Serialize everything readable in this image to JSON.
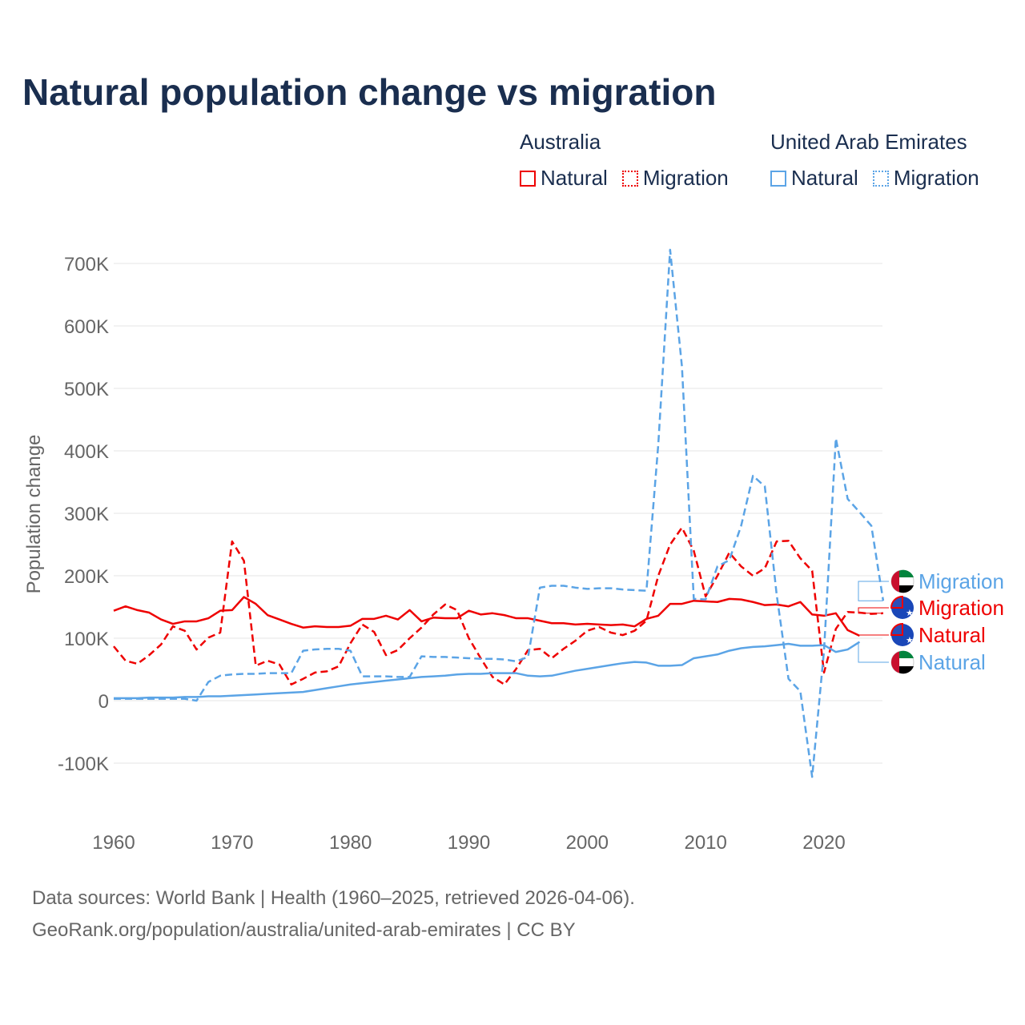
{
  "chart_data": {
    "type": "line",
    "title": "Natural population change vs migration",
    "xlabel": "",
    "ylabel": "Population change",
    "xlim": [
      1960,
      2025
    ],
    "ylim": [
      -150000,
      730000
    ],
    "x_ticks": [
      1960,
      1970,
      1980,
      1990,
      2000,
      2010,
      2020
    ],
    "x_tick_labels": [
      "1960",
      "1970",
      "1980",
      "1990",
      "2000",
      "2010",
      "2020"
    ],
    "y_ticks": [
      -100000,
      0,
      100000,
      200000,
      300000,
      400000,
      500000,
      600000,
      700000
    ],
    "y_tick_labels": [
      "-100K",
      "0",
      "100K",
      "200K",
      "300K",
      "400K",
      "500K",
      "600K",
      "700K"
    ],
    "grid": true,
    "legend": {
      "placement": "top-right",
      "groups": [
        {
          "name": "Australia",
          "items": [
            "Natural",
            "Migration"
          ]
        },
        {
          "name": "United Arab Emirates",
          "items": [
            "Natural",
            "Migration"
          ]
        }
      ]
    },
    "series": [
      {
        "name": "Australia Natural",
        "country": "Australia",
        "kind": "Natural",
        "color": "#ee0000",
        "dash": false,
        "end_label": "Natural",
        "x_start": 1960,
        "values": [
          144,
          151,
          145,
          141,
          130,
          123,
          127,
          127,
          132,
          144,
          145,
          166,
          155,
          137,
          130,
          123,
          117,
          119,
          118,
          118,
          120,
          131,
          131,
          136,
          130,
          145,
          127,
          133,
          132,
          132,
          144,
          138,
          140,
          137,
          132,
          132,
          128,
          124,
          124,
          122,
          123,
          122,
          121,
          122,
          119,
          131,
          136,
          155,
          155,
          160,
          159,
          158,
          163,
          162,
          158,
          153,
          154,
          151,
          158,
          138,
          136,
          140,
          113,
          104
        ]
      },
      {
        "name": "Australia Migration",
        "country": "Australia",
        "kind": "Migration",
        "color": "#ee0000",
        "dash": true,
        "end_label": "Migration",
        "x_start": 1960,
        "values": [
          87,
          64,
          59,
          73,
          90,
          119,
          112,
          82,
          101,
          109,
          255,
          224,
          56,
          64,
          58,
          26,
          35,
          45,
          47,
          55,
          92,
          122,
          110,
          73,
          81,
          100,
          117,
          138,
          154,
          145,
          100,
          68,
          38,
          26,
          51,
          81,
          83,
          68,
          83,
          96,
          112,
          118,
          109,
          105,
          112,
          128,
          200,
          250,
          277,
          240,
          167,
          200,
          237,
          215,
          200,
          212,
          255,
          256,
          228,
          208,
          45,
          115,
          142,
          141,
          139,
          140
        ]
      },
      {
        "name": "United Arab Emirates Natural",
        "country": "United Arab Emirates",
        "kind": "Natural",
        "color": "#5ba4e6",
        "dash": false,
        "end_label": "Natural",
        "x_start": 1960,
        "values": [
          4,
          4,
          4,
          5,
          5,
          5,
          6,
          6,
          7,
          7,
          8,
          9,
          10,
          11,
          12,
          13,
          14,
          17,
          20,
          23,
          26,
          28,
          30,
          32,
          34,
          36,
          38,
          39,
          40,
          42,
          43,
          43,
          44,
          44,
          44,
          40,
          39,
          40,
          44,
          48,
          51,
          54,
          57,
          60,
          62,
          61,
          56,
          56,
          57,
          68,
          71,
          74,
          80,
          84,
          86,
          87,
          89,
          91,
          88,
          88,
          89,
          78,
          82,
          94
        ]
      },
      {
        "name": "United Arab Emirates Migration",
        "country": "United Arab Emirates",
        "kind": "Migration",
        "color": "#5ba4e6",
        "dash": true,
        "end_label": "Migration",
        "x_start": 1960,
        "values": [
          3,
          3,
          3,
          3,
          3,
          3,
          3,
          0,
          30,
          40,
          42,
          43,
          43,
          44,
          44,
          44,
          80,
          82,
          83,
          83,
          80,
          39,
          39,
          39,
          38,
          38,
          71,
          70,
          70,
          69,
          68,
          67,
          67,
          66,
          63,
          70,
          181,
          184,
          184,
          181,
          179,
          180,
          180,
          178,
          177,
          176,
          410,
          722,
          535,
          163,
          162,
          215,
          225,
          280,
          360,
          343,
          170,
          35,
          15,
          -122,
          80,
          420,
          323,
          302,
          280,
          160
        ]
      }
    ],
    "value_unit": "thousands"
  },
  "footer": {
    "line1": "Data sources: World Bank | Health (1960–2025, retrieved 2026-04-06).",
    "line2": "GeoRank.org/population/australia/united-arab-emirates | CC BY"
  }
}
